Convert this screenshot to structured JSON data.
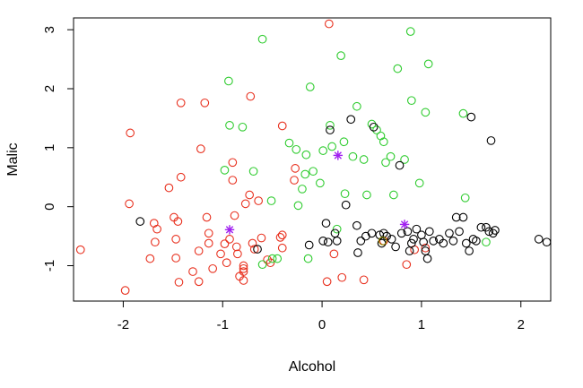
{
  "chart_data": {
    "type": "scatter",
    "title": "",
    "xlabel": "Alcohol",
    "ylabel": "Malic",
    "xlim": [
      -2.5,
      2.3
    ],
    "ylim": [
      -1.6,
      3.2
    ],
    "xticks": [
      -2,
      -1,
      0,
      1,
      2
    ],
    "yticks": [
      -1,
      0,
      1,
      2,
      3
    ],
    "tick_labels_x": [
      "-2",
      "-1",
      "0",
      "1",
      "2"
    ],
    "tick_labels_y": [
      "-1",
      "0",
      "1",
      "2",
      "3"
    ],
    "box": true,
    "grid": false,
    "legend": "none",
    "series": [
      {
        "color": "#e8301e",
        "marker": "open-circle",
        "points": [
          [
            -2.43,
            -0.73
          ],
          [
            -1.93,
            1.25
          ],
          [
            -1.98,
            -1.42
          ],
          [
            -1.94,
            0.05
          ],
          [
            -1.73,
            -0.88
          ],
          [
            -1.69,
            -0.28
          ],
          [
            -1.68,
            -0.6
          ],
          [
            -1.66,
            -0.38
          ],
          [
            -1.54,
            0.32
          ],
          [
            -1.49,
            -0.18
          ],
          [
            -1.47,
            -0.55
          ],
          [
            -1.47,
            -0.87
          ],
          [
            -1.45,
            -0.25
          ],
          [
            -1.44,
            -1.28
          ],
          [
            -1.42,
            1.76
          ],
          [
            -1.42,
            0.5
          ],
          [
            -1.3,
            -1.1
          ],
          [
            -1.24,
            -1.27
          ],
          [
            -1.24,
            -0.75
          ],
          [
            -1.22,
            0.98
          ],
          [
            -1.18,
            1.76
          ],
          [
            -1.16,
            -0.18
          ],
          [
            -1.14,
            -0.45
          ],
          [
            -1.14,
            -0.62
          ],
          [
            -1.1,
            -1.05
          ],
          [
            -1.02,
            -0.8
          ],
          [
            -0.98,
            -0.63
          ],
          [
            -0.96,
            -0.95
          ],
          [
            -0.93,
            -0.55
          ],
          [
            -0.9,
            0.45
          ],
          [
            -0.9,
            0.75
          ],
          [
            -0.88,
            -0.15
          ],
          [
            -0.86,
            -0.68
          ],
          [
            -0.85,
            -0.8
          ],
          [
            -0.83,
            -1.18
          ],
          [
            -0.79,
            -1.05
          ],
          [
            -0.79,
            -1.0
          ],
          [
            -0.79,
            -1.1
          ],
          [
            -0.79,
            -1.25
          ],
          [
            -0.77,
            0.05
          ],
          [
            -0.73,
            0.2
          ],
          [
            -0.72,
            1.87
          ],
          [
            -0.7,
            -0.62
          ],
          [
            -0.68,
            -0.72
          ],
          [
            -0.64,
            0.1
          ],
          [
            -0.61,
            -0.53
          ],
          [
            -0.55,
            -0.9
          ],
          [
            -0.52,
            -0.95
          ],
          [
            -0.42,
            -0.52
          ],
          [
            -0.4,
            -0.48
          ],
          [
            -0.4,
            -0.7
          ],
          [
            -0.4,
            1.37
          ],
          [
            -0.28,
            0.45
          ],
          [
            -0.27,
            0.65
          ],
          [
            0.05,
            -1.27
          ],
          [
            0.07,
            3.1
          ],
          [
            0.12,
            -0.8
          ],
          [
            0.2,
            -1.2
          ],
          [
            0.42,
            -1.24
          ],
          [
            0.62,
            -0.58
          ],
          [
            0.85,
            -0.98
          ],
          [
            0.93,
            -0.73
          ],
          [
            1.04,
            -0.7
          ]
        ]
      },
      {
        "color": "#2fcc2f",
        "marker": "open-circle",
        "points": [
          [
            -0.98,
            0.62
          ],
          [
            -0.94,
            2.13
          ],
          [
            -0.93,
            1.38
          ],
          [
            -0.8,
            1.35
          ],
          [
            -0.69,
            0.6
          ],
          [
            -0.6,
            2.84
          ],
          [
            -0.6,
            -0.98
          ],
          [
            -0.51,
            0.1
          ],
          [
            -0.5,
            -0.88
          ],
          [
            -0.45,
            -0.88
          ],
          [
            -0.33,
            1.08
          ],
          [
            -0.26,
            0.97
          ],
          [
            -0.24,
            0.02
          ],
          [
            -0.2,
            0.3
          ],
          [
            -0.17,
            0.55
          ],
          [
            -0.16,
            0.88
          ],
          [
            -0.14,
            -0.88
          ],
          [
            -0.12,
            2.03
          ],
          [
            -0.09,
            0.6
          ],
          [
            -0.02,
            0.4
          ],
          [
            0.01,
            0.95
          ],
          [
            0.08,
            1.38
          ],
          [
            0.1,
            1.02
          ],
          [
            0.15,
            -0.38
          ],
          [
            0.19,
            2.56
          ],
          [
            0.22,
            1.1
          ],
          [
            0.23,
            0.22
          ],
          [
            0.31,
            0.85
          ],
          [
            0.35,
            1.7
          ],
          [
            0.42,
            0.8
          ],
          [
            0.45,
            0.2
          ],
          [
            0.5,
            1.4
          ],
          [
            0.55,
            1.3
          ],
          [
            0.59,
            1.2
          ],
          [
            0.62,
            1.1
          ],
          [
            0.64,
            0.75
          ],
          [
            0.69,
            0.85
          ],
          [
            0.72,
            0.2
          ],
          [
            0.76,
            2.34
          ],
          [
            0.83,
            0.8
          ],
          [
            0.89,
            2.97
          ],
          [
            0.9,
            1.8
          ],
          [
            0.98,
            0.4
          ],
          [
            1.04,
            1.6
          ],
          [
            1.07,
            2.42
          ],
          [
            1.42,
            1.58
          ],
          [
            1.44,
            0.15
          ],
          [
            1.65,
            -0.6
          ]
        ]
      },
      {
        "color": "#000000",
        "marker": "open-circle",
        "points": [
          [
            -1.83,
            -0.25
          ],
          [
            -0.65,
            -0.72
          ],
          [
            -0.13,
            -0.65
          ],
          [
            0.01,
            -0.58
          ],
          [
            0.04,
            -0.28
          ],
          [
            0.06,
            -0.6
          ],
          [
            0.08,
            1.3
          ],
          [
            0.13,
            -0.45
          ],
          [
            0.15,
            -0.58
          ],
          [
            0.24,
            0.03
          ],
          [
            0.29,
            1.48
          ],
          [
            0.35,
            -0.32
          ],
          [
            0.36,
            -0.78
          ],
          [
            0.39,
            -0.58
          ],
          [
            0.44,
            -0.5
          ],
          [
            0.5,
            -0.45
          ],
          [
            0.52,
            1.35
          ],
          [
            0.58,
            -0.48
          ],
          [
            0.6,
            -0.62
          ],
          [
            0.62,
            -0.45
          ],
          [
            0.65,
            -0.5
          ],
          [
            0.7,
            -0.55
          ],
          [
            0.74,
            -0.68
          ],
          [
            0.78,
            0.7
          ],
          [
            0.8,
            -0.45
          ],
          [
            0.86,
            -0.42
          ],
          [
            0.88,
            -0.75
          ],
          [
            0.9,
            -0.62
          ],
          [
            0.92,
            -0.55
          ],
          [
            0.95,
            -0.38
          ],
          [
            1.0,
            -0.48
          ],
          [
            1.02,
            -0.6
          ],
          [
            1.04,
            -0.75
          ],
          [
            1.06,
            -0.88
          ],
          [
            1.08,
            -0.42
          ],
          [
            1.12,
            -0.58
          ],
          [
            1.18,
            -0.55
          ],
          [
            1.22,
            -0.62
          ],
          [
            1.28,
            -0.45
          ],
          [
            1.32,
            -0.58
          ],
          [
            1.35,
            -0.18
          ],
          [
            1.38,
            -0.42
          ],
          [
            1.42,
            -0.18
          ],
          [
            1.45,
            -0.62
          ],
          [
            1.48,
            -0.75
          ],
          [
            1.5,
            1.52
          ],
          [
            1.52,
            -0.55
          ],
          [
            1.55,
            -0.58
          ],
          [
            1.6,
            -0.35
          ],
          [
            1.65,
            -0.35
          ],
          [
            1.68,
            -0.42
          ],
          [
            1.7,
            1.12
          ],
          [
            1.72,
            -0.45
          ],
          [
            1.74,
            -0.4
          ],
          [
            2.18,
            -0.55
          ],
          [
            2.26,
            -0.6
          ]
        ]
      },
      {
        "color": "#8b8b00",
        "marker": "open-circle",
        "points": [
          [
            0.61,
            -0.58
          ]
        ]
      }
    ],
    "centroids": {
      "color": "#a020f0",
      "marker": "asterisk",
      "points": [
        [
          -0.93,
          -0.39
        ],
        [
          0.16,
          0.87
        ],
        [
          0.83,
          -0.3
        ]
      ]
    }
  }
}
